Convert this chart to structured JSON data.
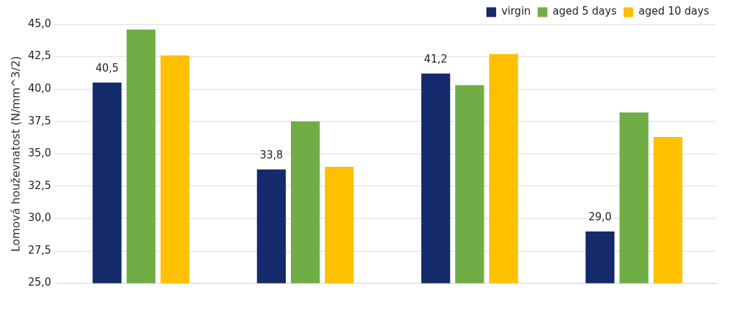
{
  "chart_data": {
    "type": "bar",
    "ylabel": "Lomová houževnatost (N/mm^3/2)",
    "categories": [
      null,
      null,
      null,
      null
    ],
    "series": [
      {
        "name": "virgin",
        "color": "#142a6b",
        "values": [
          40.5,
          33.8,
          41.2,
          29.0
        ],
        "value_labels": [
          "40,5",
          "33,8",
          "41,2",
          "29,0"
        ]
      },
      {
        "name": "aged 5 days",
        "color": "#70ad47",
        "values": [
          44.6,
          37.5,
          40.3,
          38.2
        ]
      },
      {
        "name": "aged 10 days",
        "color": "#ffc000",
        "values": [
          42.6,
          34.0,
          42.7,
          36.3
        ]
      }
    ],
    "ylim": [
      25,
      45
    ],
    "yticks": [
      {
        "value": 25,
        "label": "25,0"
      },
      {
        "value": 27.5,
        "label": "27,5"
      },
      {
        "value": 30,
        "label": "30,0"
      },
      {
        "value": 32.5,
        "label": "32,5"
      },
      {
        "value": 35,
        "label": "35,0"
      },
      {
        "value": 37.5,
        "label": "37,5"
      },
      {
        "value": 40,
        "label": "40,0"
      },
      {
        "value": 42.5,
        "label": "42,5"
      },
      {
        "value": 45,
        "label": "45,0"
      }
    ],
    "grid": "y",
    "legend": "top right"
  }
}
